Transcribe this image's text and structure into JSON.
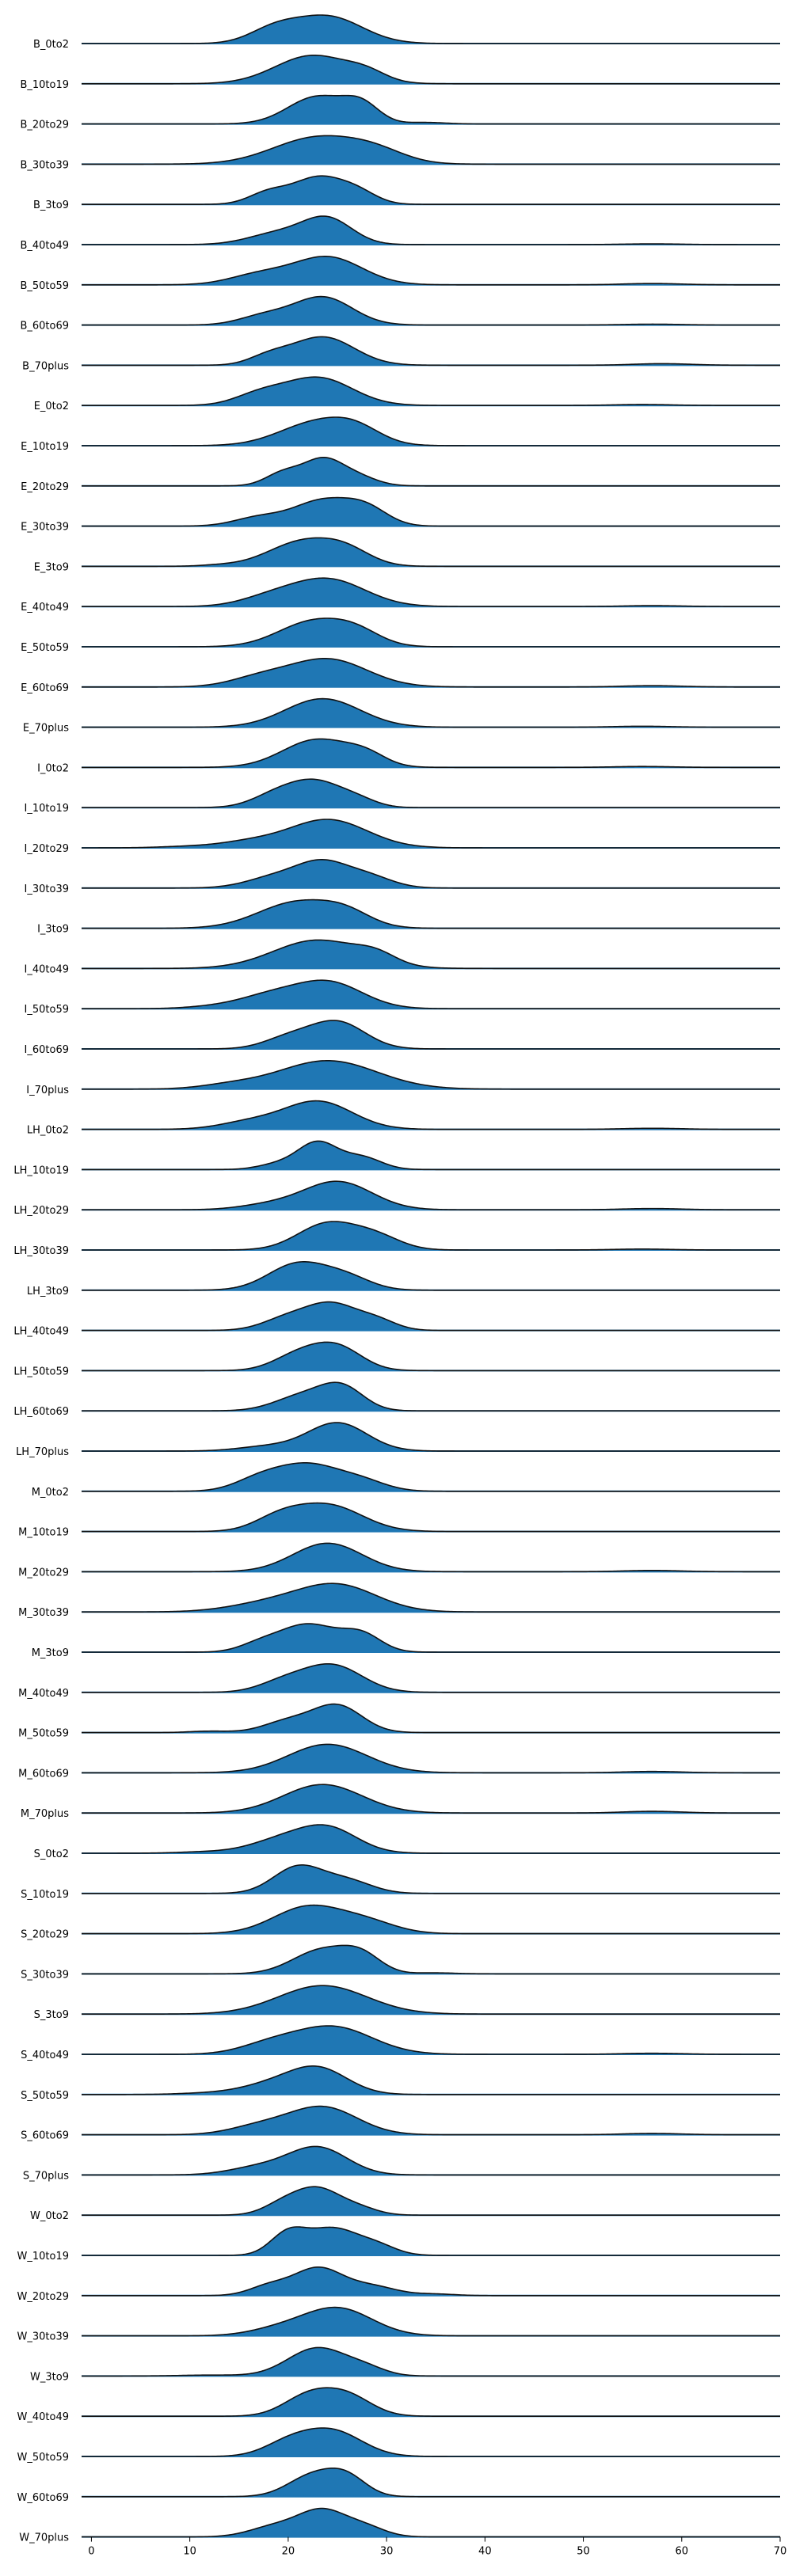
{
  "chart_data": {
    "type": "ridgeline",
    "title": "",
    "xlabel": "",
    "ylabel": "",
    "xlim": [
      -1,
      70
    ],
    "xticks": [
      0,
      10,
      20,
      30,
      40,
      50,
      60,
      70
    ],
    "grid": false,
    "legend": "none",
    "colors": {
      "fill": "#1f77b4",
      "outline": "#111111",
      "baseline": "#1f77b4"
    },
    "categories": [
      "B_0to2",
      "B_10to19",
      "B_20to29",
      "B_30to39",
      "B_3to9",
      "B_40to49",
      "B_50to59",
      "B_60to69",
      "B_70plus",
      "E_0to2",
      "E_10to19",
      "E_20to29",
      "E_30to39",
      "E_3to9",
      "E_40to49",
      "E_50to59",
      "E_60to69",
      "E_70plus",
      "I_0to2",
      "I_10to19",
      "I_20to29",
      "I_30to39",
      "I_3to9",
      "I_40to49",
      "I_50to59",
      "I_60to69",
      "I_70plus",
      "LH_0to2",
      "LH_10to19",
      "LH_20to29",
      "LH_30to39",
      "LH_3to9",
      "LH_40to49",
      "LH_50to59",
      "LH_60to69",
      "LH_70plus",
      "M_0to2",
      "M_10to19",
      "M_20to29",
      "M_30to39",
      "M_3to9",
      "M_40to49",
      "M_50to59",
      "M_60to69",
      "M_70plus",
      "S_0to2",
      "S_10to19",
      "S_20to29",
      "S_30to39",
      "S_3to9",
      "S_40to49",
      "S_50to59",
      "S_60to69",
      "S_70plus",
      "W_0to2",
      "W_10to19",
      "W_20to29",
      "W_30to39",
      "W_3to9",
      "W_40to49",
      "W_50to59",
      "W_60to69",
      "W_70plus"
    ],
    "series": [
      {
        "peaks": [
          [
            24,
            3.5,
            0.85
          ],
          [
            18.5,
            2.5,
            0.4
          ]
        ]
      },
      {
        "peaks": [
          [
            22.5,
            3.8,
            0.9
          ],
          [
            28,
            2,
            0.25
          ]
        ]
      },
      {
        "peaks": [
          [
            23,
            3,
            0.9
          ],
          [
            27.5,
            1.8,
            0.55
          ],
          [
            34,
            2,
            0.05
          ]
        ]
      },
      {
        "peaks": [
          [
            23,
            4.5,
            0.85
          ],
          [
            29,
            3,
            0.3
          ]
        ]
      },
      {
        "peaks": [
          [
            23,
            2.5,
            0.9
          ],
          [
            18,
            2,
            0.4
          ],
          [
            27,
            2,
            0.4
          ]
        ]
      },
      {
        "peaks": [
          [
            24,
            2.5,
            1.0
          ],
          [
            19,
            3,
            0.45
          ],
          [
            57,
            3,
            0.03
          ]
        ]
      },
      {
        "peaks": [
          [
            24,
            3.5,
            0.85
          ],
          [
            17,
            3,
            0.3
          ],
          [
            57,
            3,
            0.04
          ]
        ]
      },
      {
        "peaks": [
          [
            23.5,
            3,
            0.95
          ],
          [
            17.5,
            2.5,
            0.3
          ],
          [
            57,
            3,
            0.03
          ]
        ]
      },
      {
        "peaks": [
          [
            23.5,
            3.2,
            0.9
          ],
          [
            18,
            2,
            0.25
          ],
          [
            58,
            3,
            0.05
          ]
        ]
      },
      {
        "peaks": [
          [
            23,
            3.5,
            0.85
          ],
          [
            17,
            2.5,
            0.3
          ],
          [
            56,
            3,
            0.03
          ]
        ]
      },
      {
        "peaks": [
          [
            23,
            3.8,
            0.85
          ],
          [
            27,
            2.5,
            0.4
          ]
        ]
      },
      {
        "peaks": [
          [
            23.5,
            2,
            1.0
          ],
          [
            19.5,
            1.8,
            0.5
          ],
          [
            27,
            2,
            0.35
          ]
        ]
      },
      {
        "peaks": [
          [
            23.5,
            3,
            0.9
          ],
          [
            28,
            2.2,
            0.55
          ],
          [
            17,
            2.5,
            0.3
          ]
        ]
      },
      {
        "peaks": [
          [
            21.5,
            3.5,
            0.9
          ],
          [
            26,
            2.5,
            0.45
          ],
          [
            13,
            2,
            0.04
          ]
        ]
      },
      {
        "peaks": [
          [
            24,
            3.8,
            0.9
          ],
          [
            18,
            3,
            0.25
          ],
          [
            57,
            3,
            0.03
          ]
        ]
      },
      {
        "peaks": [
          [
            22.5,
            3.5,
            0.85
          ],
          [
            27,
            2.5,
            0.4
          ]
        ]
      },
      {
        "peaks": [
          [
            24,
            4,
            0.85
          ],
          [
            17,
            3,
            0.25
          ],
          [
            57,
            3,
            0.04
          ]
        ]
      },
      {
        "peaks": [
          [
            23.5,
            3.8,
            0.9
          ],
          [
            56,
            3,
            0.03
          ]
        ]
      },
      {
        "peaks": [
          [
            23,
            3.5,
            0.9
          ],
          [
            28,
            2,
            0.3
          ],
          [
            56,
            3,
            0.03
          ]
        ]
      },
      {
        "peaks": [
          [
            23,
            2.5,
            0.9
          ],
          [
            19,
            2.5,
            0.55
          ],
          [
            27,
            2,
            0.3
          ]
        ]
      },
      {
        "peaks": [
          [
            24,
            4,
            0.8
          ],
          [
            16,
            3,
            0.15
          ],
          [
            10,
            3,
            0.04
          ]
        ]
      },
      {
        "peaks": [
          [
            23.5,
            2.5,
            0.75
          ],
          [
            19,
            3,
            0.4
          ],
          [
            28,
            2.5,
            0.4
          ]
        ]
      },
      {
        "peaks": [
          [
            21,
            4,
            0.85
          ],
          [
            26,
            2.5,
            0.35
          ]
        ]
      },
      {
        "peaks": [
          [
            23,
            4.5,
            0.85
          ],
          [
            29,
            2,
            0.25
          ]
        ]
      },
      {
        "peaks": [
          [
            24,
            3.5,
            0.85
          ],
          [
            18,
            3,
            0.35
          ],
          [
            13,
            3,
            0.08
          ]
        ]
      },
      {
        "peaks": [
          [
            25,
            2.8,
            1.0
          ],
          [
            20,
            2.5,
            0.4
          ]
        ]
      },
      {
        "peaks": [
          [
            24,
            5,
            0.8
          ],
          [
            14,
            3,
            0.1
          ]
        ]
      },
      {
        "peaks": [
          [
            23,
            3.5,
            0.8
          ],
          [
            16,
            3,
            0.2
          ],
          [
            57,
            3,
            0.03
          ]
        ]
      },
      {
        "peaks": [
          [
            23,
            2,
            1.0
          ],
          [
            27.5,
            2,
            0.45
          ],
          [
            19,
            2,
            0.2
          ]
        ]
      },
      {
        "peaks": [
          [
            25,
            3.5,
            0.9
          ],
          [
            18,
            3,
            0.15
          ],
          [
            57,
            3,
            0.04
          ]
        ]
      },
      {
        "peaks": [
          [
            24,
            3,
            0.85
          ],
          [
            29,
            2.5,
            0.4
          ],
          [
            56,
            3,
            0.03
          ]
        ]
      },
      {
        "peaks": [
          [
            21,
            3,
            0.9
          ],
          [
            26,
            2.5,
            0.4
          ]
        ]
      },
      {
        "peaks": [
          [
            24.5,
            2.5,
            0.9
          ],
          [
            20,
            2.5,
            0.45
          ],
          [
            29,
            2,
            0.35
          ]
        ]
      },
      {
        "peaks": [
          [
            25,
            2.5,
            0.9
          ],
          [
            21,
            2.5,
            0.6
          ]
        ]
      },
      {
        "peaks": [
          [
            25.5,
            2.2,
            0.95
          ],
          [
            21.5,
            2.8,
            0.65
          ]
        ]
      },
      {
        "peaks": [
          [
            25,
            3,
            0.9
          ],
          [
            18,
            3,
            0.15
          ]
        ]
      },
      {
        "peaks": [
          [
            22,
            3.2,
            0.85
          ],
          [
            17,
            2.5,
            0.35
          ],
          [
            27.5,
            2.5,
            0.3
          ]
        ]
      },
      {
        "peaks": [
          [
            24,
            3.5,
            0.9
          ],
          [
            19,
            2.5,
            0.4
          ]
        ]
      },
      {
        "peaks": [
          [
            24,
            3.5,
            0.9
          ],
          [
            57,
            3,
            0.04
          ]
        ]
      },
      {
        "peaks": [
          [
            25,
            4,
            0.8
          ],
          [
            18,
            4,
            0.25
          ]
        ]
      },
      {
        "peaks": [
          [
            22,
            3,
            0.85
          ],
          [
            27.5,
            2,
            0.5
          ],
          [
            17,
            2,
            0.2
          ]
        ]
      },
      {
        "peaks": [
          [
            24.5,
            3,
            0.95
          ],
          [
            19.5,
            2.5,
            0.35
          ]
        ]
      },
      {
        "peaks": [
          [
            25,
            2.5,
            0.95
          ],
          [
            20,
            2.5,
            0.4
          ],
          [
            12,
            2,
            0.05
          ]
        ]
      },
      {
        "peaks": [
          [
            24,
            4,
            0.85
          ],
          [
            57,
            3,
            0.04
          ]
        ]
      },
      {
        "peaks": [
          [
            23.5,
            4,
            0.85
          ],
          [
            57,
            3,
            0.05
          ]
        ]
      },
      {
        "peaks": [
          [
            24,
            3,
            0.85
          ],
          [
            19,
            3,
            0.4
          ],
          [
            12,
            3,
            0.05
          ]
        ]
      },
      {
        "peaks": [
          [
            21,
            2.5,
            0.95
          ],
          [
            26,
            2.5,
            0.45
          ]
        ]
      },
      {
        "peaks": [
          [
            22,
            3.5,
            0.85
          ],
          [
            28,
            3,
            0.35
          ]
        ]
      },
      {
        "peaks": [
          [
            23.5,
            3,
            0.95
          ],
          [
            27.5,
            2,
            0.6
          ],
          [
            35,
            2,
            0.04
          ]
        ]
      },
      {
        "peaks": [
          [
            23.5,
            4.5,
            0.85
          ]
        ]
      },
      {
        "peaks": [
          [
            24.5,
            4,
            0.8
          ],
          [
            18,
            3,
            0.25
          ],
          [
            57,
            3,
            0.03
          ]
        ]
      },
      {
        "peaks": [
          [
            23,
            3,
            0.9
          ],
          [
            18,
            3,
            0.3
          ],
          [
            12,
            3,
            0.05
          ]
        ]
      },
      {
        "peaks": [
          [
            23.5,
            3.5,
            0.85
          ],
          [
            17,
            3,
            0.25
          ],
          [
            57,
            3,
            0.04
          ]
        ]
      },
      {
        "peaks": [
          [
            23,
            3,
            0.9
          ],
          [
            17,
            3,
            0.25
          ]
        ]
      },
      {
        "peaks": [
          [
            23,
            2.2,
            1.0
          ],
          [
            19.5,
            2,
            0.45
          ],
          [
            27,
            2,
            0.3
          ]
        ]
      },
      {
        "peaks": [
          [
            20,
            1.8,
            0.7
          ],
          [
            24.5,
            2.5,
            0.85
          ],
          [
            29,
            2,
            0.3
          ]
        ]
      },
      {
        "peaks": [
          [
            23,
            2.5,
            0.9
          ],
          [
            18,
            2,
            0.3
          ],
          [
            28.5,
            2.5,
            0.3
          ],
          [
            35,
            2,
            0.05
          ]
        ]
      },
      {
        "peaks": [
          [
            25,
            3.5,
            0.9
          ],
          [
            19,
            3,
            0.2
          ]
        ]
      },
      {
        "peaks": [
          [
            23,
            3,
            0.9
          ],
          [
            28,
            2,
            0.2
          ],
          [
            12,
            3,
            0.03
          ]
        ]
      },
      {
        "peaks": [
          [
            22,
            2.5,
            0.85
          ],
          [
            26,
            2.5,
            0.85
          ]
        ]
      },
      {
        "peaks": [
          [
            24.5,
            3,
            0.9
          ],
          [
            20,
            2.5,
            0.45
          ]
        ]
      },
      {
        "peaks": [
          [
            22.5,
            2.5,
            0.9
          ],
          [
            26,
            2,
            0.75
          ]
        ]
      },
      {
        "peaks": [
          [
            23.5,
            2.5,
            0.95
          ],
          [
            18.5,
            2.5,
            0.35
          ],
          [
            28,
            2,
            0.3
          ]
        ]
      }
    ]
  }
}
